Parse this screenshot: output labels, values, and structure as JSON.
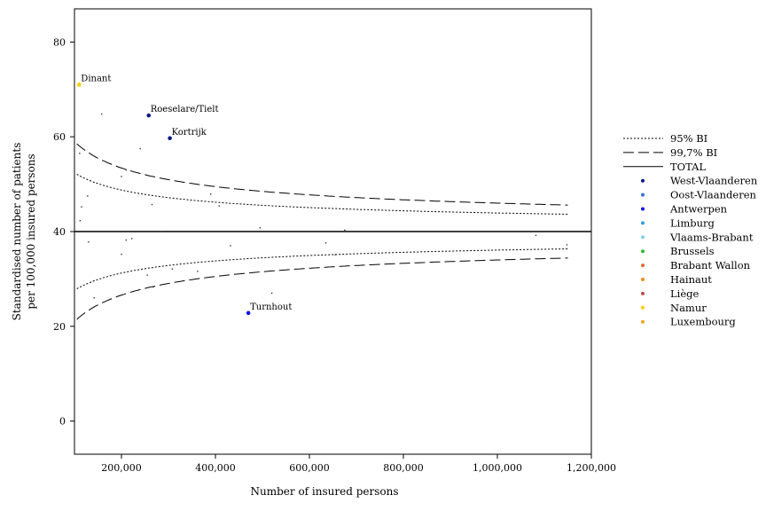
{
  "chart_data": {
    "type": "scatter",
    "subtype": "funnel-plot",
    "title": "",
    "xlabel": "Number of insured persons",
    "ylabel_lines": [
      "Standardised number of patients",
      "per 100,000 insured persons"
    ],
    "xlim": [
      100000,
      1200000
    ],
    "ylim": [
      -7,
      87
    ],
    "x_ticks": [
      200000,
      400000,
      600000,
      800000,
      1000000,
      1200000
    ],
    "x_tick_labels": [
      "200,000",
      "400,000",
      "600,000",
      "800,000",
      "1,000,000",
      "1,200,000"
    ],
    "y_ticks": [
      0,
      20,
      40,
      60,
      80
    ],
    "y_tick_labels": [
      "0",
      "20",
      "40",
      "60",
      "80"
    ],
    "total": 40,
    "grid": false,
    "legend_position": "right",
    "legend": {
      "lines": [
        {
          "name": "95% BI",
          "style": "dotted"
        },
        {
          "name": "99,7% BI",
          "style": "dashed"
        },
        {
          "name": "TOTAL",
          "style": "solid"
        }
      ],
      "regions": [
        {
          "name": "West-Vlaanderen",
          "color": "#0c1a80"
        },
        {
          "name": "Oost-Vlaanderen",
          "color": "#3a6fd8"
        },
        {
          "name": "Antwerpen",
          "color": "#1515e8"
        },
        {
          "name": "Limburg",
          "color": "#2e9fe0"
        },
        {
          "name": "Vlaams-Brabant",
          "color": "#7fd0f0"
        },
        {
          "name": "Brussels",
          "color": "#33bb33"
        },
        {
          "name": "Brabant Wallon",
          "color": "#e06a2a"
        },
        {
          "name": "Hainaut",
          "color": "#f08c1e"
        },
        {
          "name": "Liège",
          "color": "#c0504d"
        },
        {
          "name": "Namur",
          "color": "#f5d000"
        },
        {
          "name": "Luxembourg",
          "color": "#f0a020"
        }
      ]
    },
    "labeled_points": [
      {
        "label": "Dinant",
        "x": 110000,
        "y": 71,
        "region": "Namur"
      },
      {
        "label": "Roeselare/Tielt",
        "x": 258000,
        "y": 64.5,
        "region": "West-Vlaanderen"
      },
      {
        "label": "Kortrijk",
        "x": 303000,
        "y": 59.7,
        "region": "West-Vlaanderen"
      },
      {
        "label": "Turnhout",
        "x": 470000,
        "y": 22.8,
        "region": "Antwerpen"
      }
    ],
    "points": [
      [
        111000,
        56.5
      ],
      [
        115000,
        45.2
      ],
      [
        112000,
        42.3
      ],
      [
        128000,
        47.5
      ],
      [
        130000,
        37.8
      ],
      [
        142000,
        26.0
      ],
      [
        158000,
        64.8
      ],
      [
        200000,
        35.2
      ],
      [
        200000,
        51.6
      ],
      [
        210000,
        53.0
      ],
      [
        210000,
        38.2
      ],
      [
        222000,
        38.5
      ],
      [
        240000,
        57.5
      ],
      [
        255000,
        30.8
      ],
      [
        265000,
        45.7
      ],
      [
        268000,
        28.3
      ],
      [
        285000,
        40.0
      ],
      [
        308000,
        32.1
      ],
      [
        362000,
        31.6
      ],
      [
        390000,
        47.9
      ],
      [
        408000,
        45.4
      ],
      [
        432000,
        37.0
      ],
      [
        495000,
        40.8
      ],
      [
        520000,
        27.0
      ],
      [
        635000,
        37.6
      ],
      [
        655000,
        35.1
      ],
      [
        675000,
        40.3
      ],
      [
        1082000,
        39.2
      ],
      [
        1148000,
        37.2
      ]
    ]
  }
}
